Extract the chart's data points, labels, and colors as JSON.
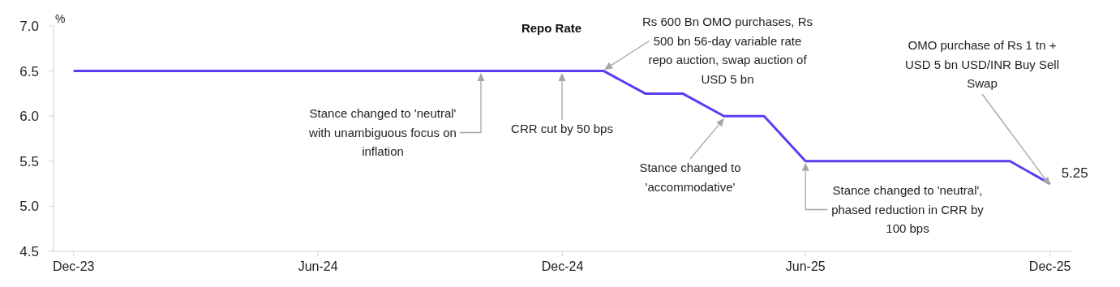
{
  "chart_data": {
    "type": "line",
    "title": "Repo Rate",
    "ylabel": "%",
    "x": [
      "2023-12-16",
      "2024-01-16",
      "2024-02-16",
      "2024-03-16",
      "2024-04-16",
      "2024-05-16",
      "2024-06-16",
      "2024-07-16",
      "2024-08-16",
      "2024-09-16",
      "2024-10-16",
      "2024-11-16",
      "2024-12-16",
      "2025-01-16",
      "2025-02-16",
      "2025-03-16",
      "2025-04-16",
      "2025-05-16",
      "2025-06-16",
      "2025-07-16",
      "2025-08-16",
      "2025-09-16",
      "2025-10-16",
      "2025-11-16",
      "2025-12-16"
    ],
    "series": [
      {
        "color": "#5b3cf5",
        "values": [
          6.5,
          6.5,
          6.5,
          6.5,
          6.5,
          6.5,
          6.5,
          6.5,
          6.5,
          6.5,
          6.5,
          6.5,
          6.5,
          6.5,
          6.25,
          6.25,
          6.0,
          6.0,
          5.5,
          5.5,
          5.5,
          5.5,
          5.5,
          5.5,
          5.25
        ],
        "value_labels": [
          null,
          null,
          null,
          null,
          null,
          null,
          null,
          null,
          null,
          null,
          null,
          null,
          null,
          null,
          null,
          null,
          null,
          null,
          null,
          null,
          null,
          null,
          null,
          null,
          "5.25"
        ]
      }
    ],
    "xlim": [
      "2023-12-01",
      "2026-01-01"
    ],
    "xticks": [
      {
        "value": "2023-12-16",
        "label": "Dec-23"
      },
      {
        "value": "2024-06-16",
        "label": "Jun-24"
      },
      {
        "value": "2024-12-16",
        "label": "Dec-24"
      },
      {
        "value": "2025-06-16",
        "label": "Jun-25"
      },
      {
        "value": "2025-12-16",
        "label": "Dec-25"
      }
    ],
    "ylim": [
      4.5,
      7.0
    ],
    "yticks": [
      {
        "value": 4.5,
        "label": "4.5"
      },
      {
        "value": 5.0,
        "label": "5.0"
      },
      {
        "value": 5.5,
        "label": "5.5"
      },
      {
        "value": 6.0,
        "label": "6.0"
      },
      {
        "value": 6.5,
        "label": "6.5"
      },
      {
        "value": 7.0,
        "label": "7.0"
      }
    ],
    "grid": false,
    "legend": false,
    "marker": "none",
    "line_style": "solid",
    "annotations": [
      "Stance changed to 'neutral' with unambiguous focus on inflation",
      "CRR cut by 50 bps",
      "Rs 600 Bn OMO purchases, Rs 500 bn 56-day variable rate repo auction, swap auction of USD 5 bn",
      "Stance changed to 'accommodative'",
      {
        "text": "Stance changed to 'neutral', phased reduction in CRR by 100 bps",
        "x": "2025-06-16",
        "y": 5.5
      },
      {
        "text": "OMO purchase of Rs 1 tn + USD 5 bn USD/INR Buy Sell Swap",
        "x": "2025-12-16",
        "y": 5.25
      }
    ]
  }
}
